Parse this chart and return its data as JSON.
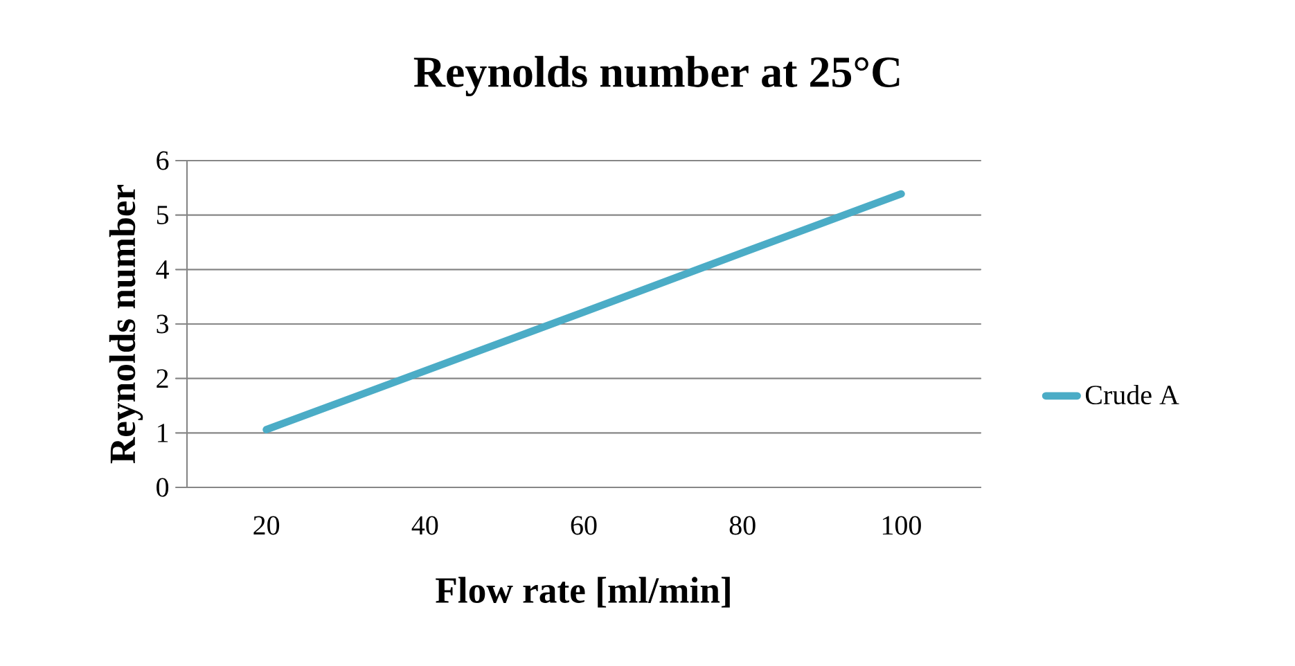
{
  "chart_data": {
    "type": "line",
    "title": "Reynolds number at 25°C",
    "xlabel": "Flow rate [ml/min]",
    "ylabel": "Reynolds number",
    "categories": [
      "20",
      "40",
      "60",
      "80",
      "100"
    ],
    "series": [
      {
        "name": "Crude A",
        "color": "#4bacc6",
        "values": [
          1.06,
          2.14,
          3.22,
          4.31,
          5.39
        ]
      }
    ],
    "ylim": [
      0,
      6
    ],
    "yticks": [
      0,
      1,
      2,
      3,
      4,
      5,
      6
    ],
    "grid": "y",
    "legend": "right",
    "marker": "none",
    "line_style": "solid"
  }
}
